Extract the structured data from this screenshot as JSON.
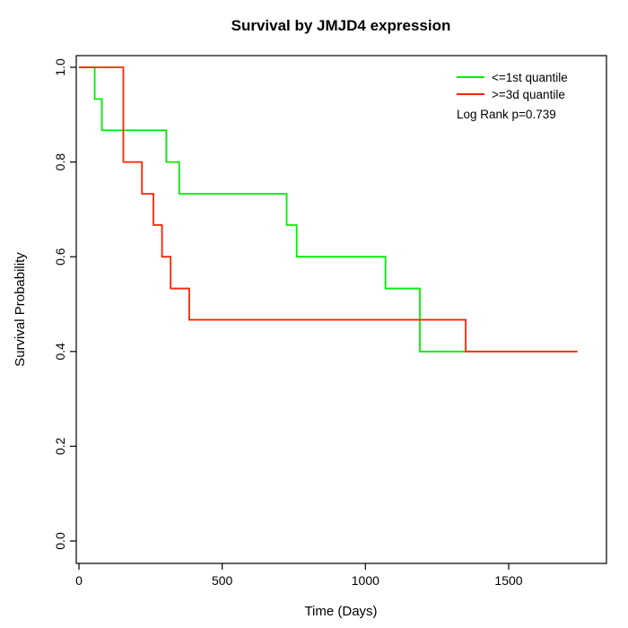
{
  "chart_data": {
    "type": "line",
    "subtype": "kaplan-meier-survival-step",
    "title": "Survival by JMJD4 expression",
    "xlabel": "Time (Days)",
    "ylabel": "Survival Probability",
    "xlim": [
      0,
      1800
    ],
    "ylim": [
      0.0,
      1.0
    ],
    "grid": false,
    "legend_position": "top-right-inside",
    "xticks": [
      {
        "v": 0,
        "label": "0"
      },
      {
        "v": 500,
        "label": "500"
      },
      {
        "v": 1000,
        "label": "1000"
      },
      {
        "v": 1500,
        "label": "1500"
      }
    ],
    "yticks": [
      {
        "v": 0.0,
        "label": "0.0"
      },
      {
        "v": 0.2,
        "label": "0.2"
      },
      {
        "v": 0.4,
        "label": "0.4"
      },
      {
        "v": 0.6,
        "label": "0.6"
      },
      {
        "v": 0.8,
        "label": "0.8"
      },
      {
        "v": 1.0,
        "label": "1.0"
      }
    ],
    "legend": {
      "entries": [
        {
          "label": "<=1st quantile",
          "color": "#00EE00"
        },
        {
          "label": ">=3d quantile",
          "color": "#FF2200"
        }
      ],
      "annotation": "Log Rank p=0.739"
    },
    "series": [
      {
        "name": "<=1st quantile",
        "color": "#00EE00",
        "steps": [
          [
            0,
            1.0
          ],
          [
            55,
            0.933
          ],
          [
            80,
            0.867
          ],
          [
            305,
            0.8
          ],
          [
            350,
            0.733
          ],
          [
            725,
            0.667
          ],
          [
            760,
            0.6
          ],
          [
            1070,
            0.533
          ],
          [
            1190,
            0.4
          ],
          [
            1350,
            0.4
          ]
        ]
      },
      {
        "name": ">=3d quantile",
        "color": "#FF2200",
        "steps": [
          [
            0,
            1.0
          ],
          [
            155,
            0.8
          ],
          [
            220,
            0.733
          ],
          [
            260,
            0.667
          ],
          [
            290,
            0.6
          ],
          [
            320,
            0.533
          ],
          [
            385,
            0.467
          ],
          [
            1350,
            0.4
          ],
          [
            1740,
            0.4
          ]
        ]
      }
    ]
  }
}
